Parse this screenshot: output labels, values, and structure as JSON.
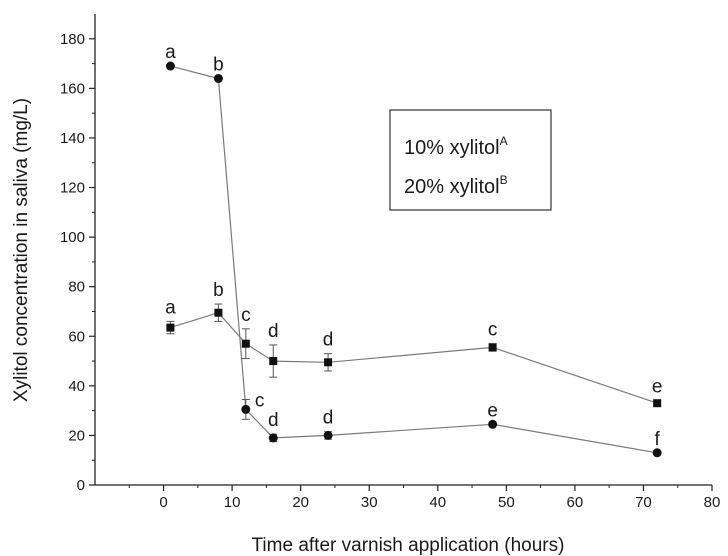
{
  "chart_data": {
    "type": "line",
    "xlabel": "Time after varnish application (hours)",
    "ylabel": "Xylitol concentration in saliva (mg/L)",
    "xlim": [
      -10,
      80
    ],
    "ylim": [
      0,
      190
    ],
    "xticks": [
      0,
      10,
      20,
      30,
      40,
      50,
      60,
      70,
      80
    ],
    "yticks": [
      0,
      20,
      40,
      60,
      80,
      100,
      120,
      140,
      160,
      180
    ],
    "grid": false,
    "legend_position": "top-right",
    "legend": [
      {
        "text": "10% xylitol",
        "sup": "A"
      },
      {
        "text": "20% xylitol",
        "sup": "B"
      }
    ],
    "x": [
      1,
      8,
      12,
      16,
      24,
      48,
      72
    ],
    "series": [
      {
        "marker": "square",
        "values": [
          63.5,
          69.5,
          57,
          50,
          49.5,
          55.5,
          33
        ],
        "errors": [
          2.5,
          3.5,
          6,
          6.5,
          3.5,
          1.5,
          1
        ],
        "labels": [
          "a",
          "b",
          "c",
          "d",
          "d",
          "c",
          "e"
        ]
      },
      {
        "marker": "circle",
        "values": [
          169,
          164,
          30.5,
          19,
          20,
          24.5,
          13
        ],
        "errors": [
          0,
          0,
          4,
          1.5,
          1.5,
          0,
          0
        ],
        "labels": [
          "a",
          "b",
          "c",
          "d",
          "d",
          "e",
          "f"
        ]
      }
    ],
    "colors": {
      "line": "#7a7a7a",
      "marker": "#111111",
      "axis": "#222222"
    }
  }
}
